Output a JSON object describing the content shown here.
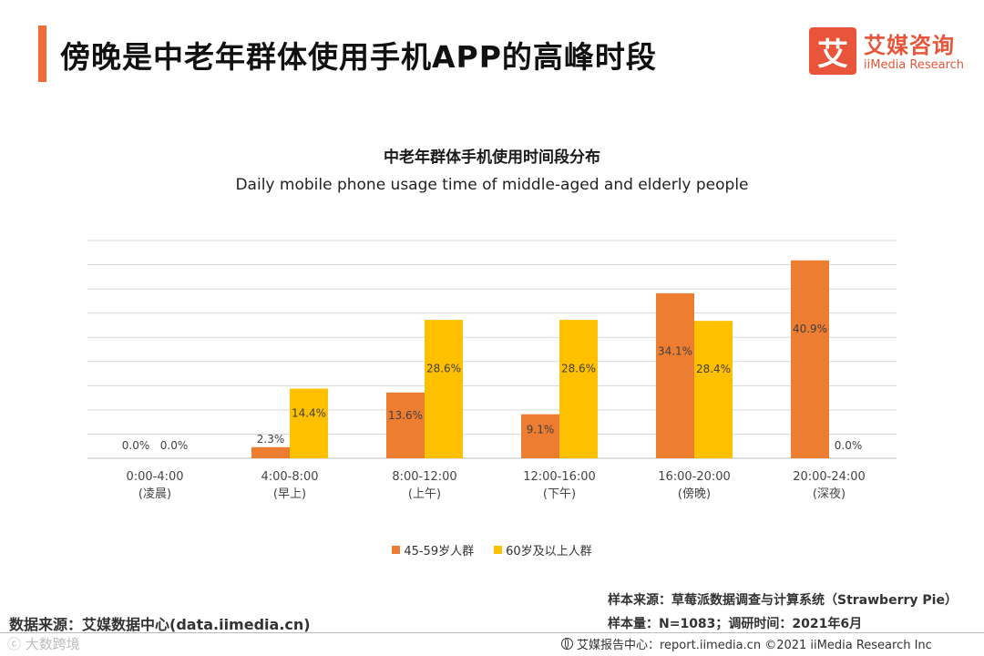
{
  "header": {
    "title": "傍晚是中老年群体使用手机APP的高峰时段",
    "accent_color": "#f26b36"
  },
  "logo": {
    "mark": "艾",
    "cn": "艾媒咨询",
    "en": "iiMedia Research",
    "color": "#e8553a"
  },
  "chart_data": {
    "type": "bar",
    "title": "中老年群体手机使用时间段分布",
    "subtitle": "Daily mobile phone usage time of middle-aged and elderly people",
    "categories": [
      "0:00-4:00",
      "4:00-8:00",
      "8:00-12:00",
      "12:00-16:00",
      "16:00-20:00",
      "20:00-24:00"
    ],
    "category_sublabels": [
      "(凌晨)",
      "(早上)",
      "(上午)",
      "(下午)",
      "(傍晚)",
      "(深夜)"
    ],
    "series": [
      {
        "name": "45-59岁人群",
        "color": "#ed7d31",
        "values": [
          0.0,
          2.3,
          13.6,
          9.1,
          34.1,
          40.9
        ],
        "labels": [
          "0.0%",
          "2.3%",
          "13.6%",
          "9.1%",
          "34.1%",
          "40.9%"
        ]
      },
      {
        "name": "60岁及以上人群",
        "color": "#ffc000",
        "values": [
          0.0,
          14.4,
          28.6,
          28.6,
          28.4,
          0.0
        ],
        "labels": [
          "0.0%",
          "14.4%",
          "28.6%",
          "28.6%",
          "28.4%",
          "0.0%"
        ]
      }
    ],
    "ylim": [
      0,
      45
    ],
    "gridlines": 9,
    "legend_position": "bottom",
    "ylabel": "",
    "xlabel": ""
  },
  "footer": {
    "data_source": "数据来源：艾媒数据中心(data.iimedia.cn)",
    "sample_source": "样本来源：草莓派数据调查与计算系统（Strawberry Pie）",
    "sample_size": "样本量：N=1083；调研时间：2021年6月",
    "bottom_line": "艾媒报告中心：report.iimedia.cn   ©2021  iiMedia Research  Inc",
    "watermark": "ⓒ 大数跨境"
  }
}
